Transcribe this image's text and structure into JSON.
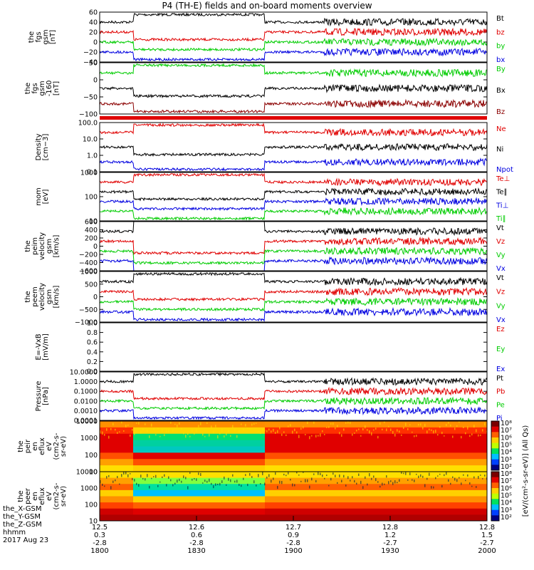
{
  "title": "P4 (TH-E) fields and on-board moments overview",
  "date": "2017 Aug 23",
  "x_axis": {
    "rows": [
      {
        "label": "the_X-GSM",
        "values": [
          "12.5",
          "12.6",
          "12.7",
          "12.8",
          "12.8"
        ]
      },
      {
        "label": "the_Y-GSM",
        "values": [
          "0.3",
          "0.6",
          "0.9",
          "1.2",
          "1.5"
        ]
      },
      {
        "label": "the_Z-GSM",
        "values": [
          "-2.8",
          "-2.8",
          "-2.8",
          "-2.7",
          "-2.7"
        ]
      },
      {
        "label": "hhmm",
        "values": [
          "1800",
          "1830",
          "1900",
          "1930",
          "2000"
        ]
      }
    ]
  },
  "colors": {
    "black": "#000000",
    "red": "#e00000",
    "green": "#00cc00",
    "blue": "#0000e0",
    "dkred": "#8b0000"
  },
  "chart_data": [
    {
      "type": "line",
      "ylabel": [
        "the",
        "fgs",
        "gsm",
        "[nT]"
      ],
      "ylim": [
        -40,
        60
      ],
      "yticks": [
        "60",
        "40",
        "20",
        "0",
        "−20",
        "−40"
      ],
      "series": [
        {
          "name": "Bt",
          "color": "black"
        },
        {
          "name": "bz",
          "color": "red"
        },
        {
          "name": "by",
          "color": "green"
        },
        {
          "name": "bx",
          "color": "blue"
        }
      ]
    },
    {
      "type": "line",
      "ylabel": [
        "the",
        "fgs",
        "gsm",
        "-160",
        "[nT]"
      ],
      "ylim": [
        -130,
        50
      ],
      "yticks": [
        "50",
        "0",
        "−50",
        "−100"
      ],
      "series": [
        {
          "name": "By",
          "color": "green"
        },
        {
          "name": "Bx",
          "color": "black"
        },
        {
          "name": "Bz",
          "color": "dkred"
        }
      ]
    },
    {
      "type": "line",
      "ylabel": [
        "Density",
        "[cm−3]"
      ],
      "ylim": [
        0.1,
        100
      ],
      "log": true,
      "yticks": [
        "100.0",
        "10.0",
        "1.0",
        "0.1"
      ],
      "series": [
        {
          "name": "Ne",
          "color": "red"
        },
        {
          "name": "Ni",
          "color": "black"
        },
        {
          "name": "Npot",
          "color": "blue"
        }
      ]
    },
    {
      "type": "line",
      "ylabel": [
        "mom",
        "[eV]"
      ],
      "ylim": [
        10,
        1000
      ],
      "log": true,
      "yticks": [
        "1000",
        "100",
        "10"
      ],
      "series": [
        {
          "name": "Te⊥",
          "color": "red"
        },
        {
          "name": "Te∥",
          "color": "black"
        },
        {
          "name": "Ti⊥",
          "color": "blue"
        },
        {
          "name": "Ti∥",
          "color": "green"
        }
      ]
    },
    {
      "type": "line",
      "ylabel": [
        "the",
        "peim",
        "velocity",
        "gsm",
        "[km/s]"
      ],
      "ylim": [
        -600,
        600
      ],
      "yticks": [
        "600",
        "400",
        "200",
        "0",
        "−200",
        "−400",
        "−600"
      ],
      "series": [
        {
          "name": "Vt",
          "color": "black"
        },
        {
          "name": "Vz",
          "color": "red"
        },
        {
          "name": "Vy",
          "color": "green"
        },
        {
          "name": "Vx",
          "color": "blue"
        }
      ]
    },
    {
      "type": "line",
      "ylabel": [
        "the",
        "peem",
        "velocity",
        "gsm",
        "[km/s]"
      ],
      "ylim": [
        -1500,
        1500
      ],
      "yticks": [
        "1000",
        "500",
        "0",
        "−500",
        "−1000"
      ],
      "series": [
        {
          "name": "Vt",
          "color": "black"
        },
        {
          "name": "Vz",
          "color": "red"
        },
        {
          "name": "Vy",
          "color": "green"
        },
        {
          "name": "Vx",
          "color": "blue"
        }
      ]
    },
    {
      "type": "line",
      "ylabel": [
        "E=-VxB",
        "[mV/m]"
      ],
      "ylim": [
        0.0,
        1.0
      ],
      "yticks": [
        "1.0",
        "0.8",
        "0.6",
        "0.4",
        "0.2",
        "0.0"
      ],
      "series": [
        {
          "name": "Ez",
          "color": "red"
        },
        {
          "name": "Ey",
          "color": "green"
        },
        {
          "name": "Ex",
          "color": "blue"
        }
      ]
    },
    {
      "type": "line",
      "ylabel": [
        "Pressure",
        "[nPa]"
      ],
      "ylim": [
        0.0001,
        10
      ],
      "log": true,
      "yticks": [
        "10.0000",
        "1.0000",
        "0.1000",
        "0.0100",
        "0.0010",
        "0.0001"
      ],
      "series": [
        {
          "name": "Pt",
          "color": "black"
        },
        {
          "name": "Pb",
          "color": "red"
        },
        {
          "name": "Pe",
          "color": "green"
        },
        {
          "name": "Pi",
          "color": "blue"
        }
      ]
    },
    {
      "type": "heatmap",
      "ylabel": [
        "the",
        "peir",
        "en",
        "eflux",
        "eV",
        "(cm2-s-",
        "sr-eV)"
      ],
      "ylim": [
        10,
        10000
      ],
      "log": true,
      "yticks": [
        "10000",
        "1000",
        "100",
        "10"
      ]
    },
    {
      "type": "heatmap",
      "ylabel": [
        "the",
        "peer",
        "en",
        "eflux",
        "eV",
        "(cm2-s-",
        "sr-eV)"
      ],
      "ylim": [
        10,
        10000
      ],
      "log": true,
      "yticks": [
        "10000",
        "1000",
        "100",
        "10"
      ]
    }
  ],
  "colorbar": {
    "labels": [
      "10⁸",
      "10⁷",
      "10⁶",
      "10⁵",
      "10⁴",
      "10³",
      "10²"
    ],
    "labels2": [
      "10⁸",
      "10⁷",
      "10⁶",
      "10⁵",
      "10⁴",
      "10³",
      "10²"
    ],
    "title": "[eV/(cm²-s-sr-eV)] (All Qs)"
  }
}
